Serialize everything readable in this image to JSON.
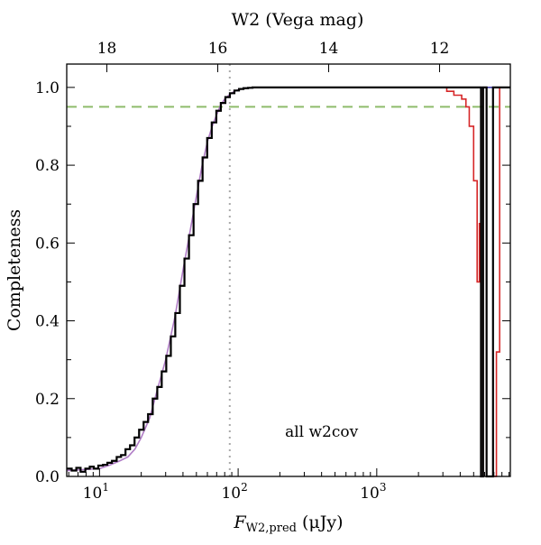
{
  "chart_data": {
    "type": "line",
    "x_scale": "log",
    "xlim": [
      5.8,
      9200
    ],
    "ylim": [
      0,
      1.06
    ],
    "xlabel": "F",
    "xlabel_subscript": "W2,pred",
    "xlabel_unit": "(μJy)",
    "ylabel": "Completeness",
    "top_xlabel": "W2 (Vega mag)",
    "x_ticks": [
      {
        "value": 10,
        "base": "10",
        "exp": "1"
      },
      {
        "value": 100,
        "base": "10",
        "exp": "2"
      },
      {
        "value": 1000,
        "base": "10",
        "exp": "3"
      }
    ],
    "y_ticks": [
      "0.0",
      "0.2",
      "0.4",
      "0.6",
      "0.8",
      "1.0"
    ],
    "top_ticks": [
      {
        "label": "18",
        "flux": 11.3
      },
      {
        "label": "16",
        "flux": 71.3
      },
      {
        "label": "14",
        "flux": 450
      },
      {
        "label": "12",
        "flux": 2840
      }
    ],
    "reference_lines": [
      {
        "orientation": "horizontal",
        "value": 0.95,
        "color": "#8fbc6b",
        "style": "dashed"
      },
      {
        "orientation": "vertical",
        "value": 87,
        "color": "#aaaaaa",
        "style": "dotted"
      }
    ],
    "annotation": "all w2cov",
    "series": [
      {
        "style": "model",
        "color": "#b07cc6",
        "x": [
          5.8,
          10,
          12,
          14,
          16,
          18,
          20,
          23,
          26,
          30,
          35,
          40,
          45,
          50,
          55,
          60,
          65,
          70,
          75,
          80,
          87,
          95,
          105,
          120,
          150,
          200,
          9200
        ],
        "y": [
          0.015,
          0.02,
          0.03,
          0.04,
          0.05,
          0.07,
          0.1,
          0.15,
          0.22,
          0.3,
          0.41,
          0.53,
          0.63,
          0.72,
          0.8,
          0.86,
          0.9,
          0.93,
          0.955,
          0.97,
          0.982,
          0.991,
          0.996,
          0.999,
          1.0,
          1.0,
          1.0
        ]
      },
      {
        "style": "step",
        "color": "#3a3aa8",
        "x": [
          5.8,
          6.3,
          6.8,
          7.3,
          7.9,
          8.5,
          9.1,
          9.8,
          10.6,
          11.4,
          12.3,
          13.3,
          14.3,
          15.4,
          16.6,
          17.9,
          19.3,
          20.8,
          22.4,
          24.2,
          26.1,
          28.1,
          30.3,
          32.7,
          35.2,
          38,
          41,
          44.2,
          47.7,
          51.4,
          55.4,
          59.8,
          64.5,
          69.6,
          75,
          80.9,
          87.2,
          94,
          101.4,
          109.3,
          117.9,
          127.1,
          137.1,
          147.8,
          159.4,
          171.9
        ],
        "y": [
          0.02,
          0.015,
          0.022,
          0.012,
          0.02,
          0.025,
          0.02,
          0.028,
          0.03,
          0.035,
          0.04,
          0.05,
          0.055,
          0.07,
          0.08,
          0.1,
          0.12,
          0.14,
          0.16,
          0.2,
          0.23,
          0.27,
          0.31,
          0.36,
          0.42,
          0.49,
          0.56,
          0.62,
          0.7,
          0.76,
          0.82,
          0.87,
          0.91,
          0.94,
          0.96,
          0.975,
          0.985,
          0.992,
          0.996,
          0.998,
          0.999,
          1.0,
          1.0,
          1.0,
          1.0,
          1.0
        ]
      },
      {
        "style": "step",
        "color": "#d62728",
        "x": [
          170,
          2700,
          3200,
          3600,
          4100,
          4400,
          4650,
          5000,
          5300,
          5500,
          5650,
          5850,
          6200,
          7300,
          7700,
          9200
        ],
        "y": [
          1.0,
          1.0,
          0.99,
          0.98,
          0.97,
          0.95,
          0.9,
          0.76,
          0.5,
          0.65,
          0.0,
          1.0,
          0.0,
          0.32,
          1.0,
          1.0
        ]
      },
      {
        "style": "step",
        "color": "#000000",
        "x": [
          5.8,
          6.3,
          6.8,
          7.3,
          7.9,
          8.5,
          9.1,
          9.8,
          10.6,
          11.4,
          12.3,
          13.3,
          14.3,
          15.4,
          16.6,
          17.9,
          19.3,
          20.8,
          22.4,
          24.2,
          26.1,
          28.1,
          30.3,
          32.7,
          35.2,
          38,
          41,
          44.2,
          47.7,
          51.4,
          55.4,
          59.8,
          64.5,
          69.6,
          75,
          80.9,
          87.2,
          94,
          101.4,
          109.3,
          117.9,
          127.1,
          137.1,
          147.8,
          159.4,
          171.9,
          5650,
          5850,
          6200,
          6900,
          7100,
          9200
        ],
        "y": [
          0.02,
          0.015,
          0.022,
          0.012,
          0.02,
          0.025,
          0.02,
          0.028,
          0.03,
          0.035,
          0.04,
          0.05,
          0.055,
          0.07,
          0.08,
          0.1,
          0.12,
          0.14,
          0.16,
          0.2,
          0.23,
          0.27,
          0.31,
          0.36,
          0.42,
          0.49,
          0.56,
          0.62,
          0.7,
          0.76,
          0.82,
          0.87,
          0.91,
          0.94,
          0.96,
          0.975,
          0.985,
          0.992,
          0.996,
          0.998,
          0.999,
          1.0,
          1.0,
          1.0,
          1.0,
          1.0,
          0.0,
          1.0,
          0.0,
          1.0,
          1.0,
          1.0
        ]
      }
    ]
  }
}
